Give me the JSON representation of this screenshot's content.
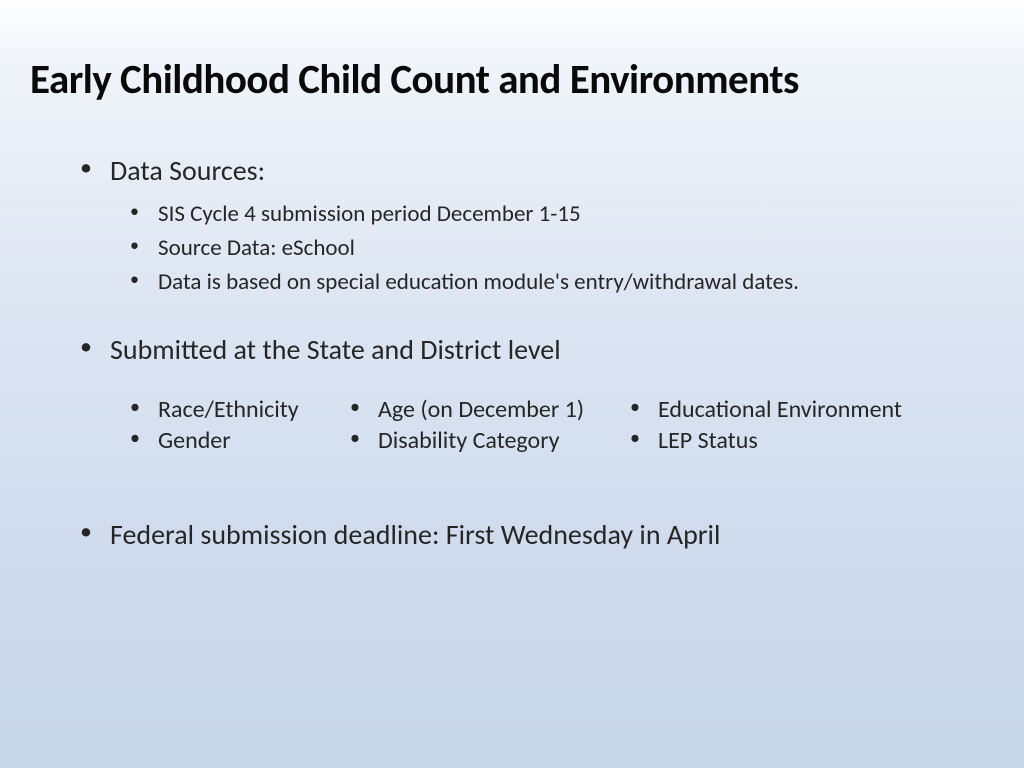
{
  "title": "Early Childhood Child Count and Environments",
  "section1": {
    "heading": "Data Sources:",
    "items": [
      "SIS Cycle 4 submission period December 1-15",
      "Source Data: eSchool",
      "Data is based on special education module's entry/withdrawal dates."
    ]
  },
  "section2": {
    "heading": "Submitted at the State and District level",
    "columns": {
      "col1": [
        "Race/Ethnicity",
        "Gender"
      ],
      "col2": [
        "Age (on December 1)",
        "Disability Category"
      ],
      "col3": [
        "Educational Environment",
        "LEP Status"
      ]
    }
  },
  "section3": {
    "heading": "Federal submission deadline: First Wednesday in April"
  },
  "styling": {
    "background_gradient_top": "#ffffff",
    "background_gradient_bottom": "#c8d6ea",
    "title_color": "#0a0a0a",
    "text_color": "#262626",
    "title_fontsize": 41,
    "heading_fontsize": 28,
    "sub_fontsize": 23,
    "col_fontsize": 24,
    "font_family": "Calibri"
  }
}
